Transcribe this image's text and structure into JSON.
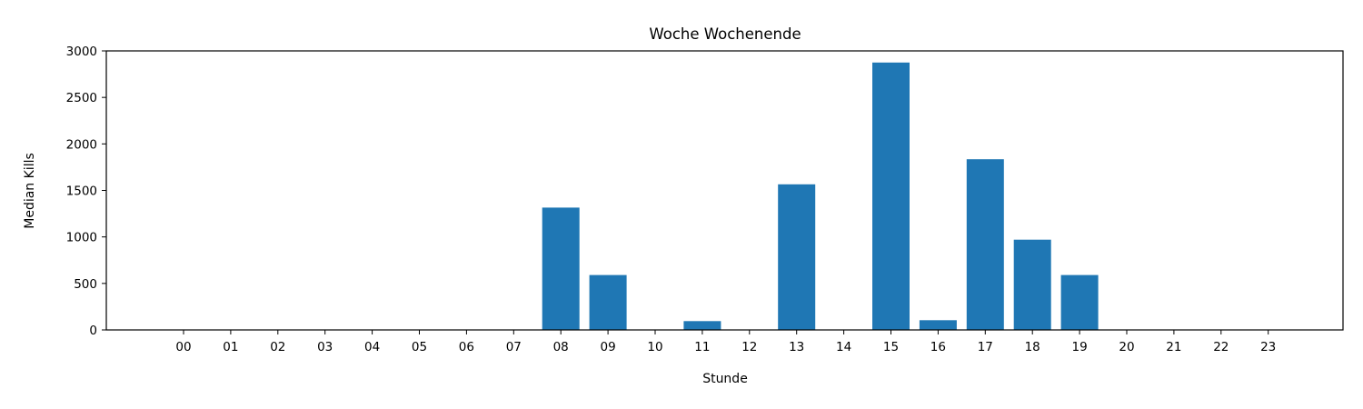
{
  "chart_data": {
    "type": "bar",
    "title": "Woche Wochenende",
    "xlabel": "Stunde",
    "ylabel": "Median Kills",
    "categories": [
      "00",
      "01",
      "02",
      "03",
      "04",
      "05",
      "06",
      "07",
      "08",
      "09",
      "10",
      "11",
      "12",
      "13",
      "14",
      "15",
      "16",
      "17",
      "18",
      "19",
      "20",
      "21",
      "22",
      "23"
    ],
    "values": [
      0,
      0,
      0,
      0,
      0,
      0,
      0,
      0,
      1315,
      590,
      0,
      95,
      0,
      1565,
      0,
      2875,
      105,
      1835,
      970,
      590,
      0,
      0,
      0,
      0
    ],
    "ylim": [
      0,
      3000
    ],
    "yticks": [
      0,
      500,
      1000,
      1500,
      2000,
      2500,
      3000
    ],
    "bar_color": "#1f77b4",
    "grid": false,
    "legend": "none"
  }
}
